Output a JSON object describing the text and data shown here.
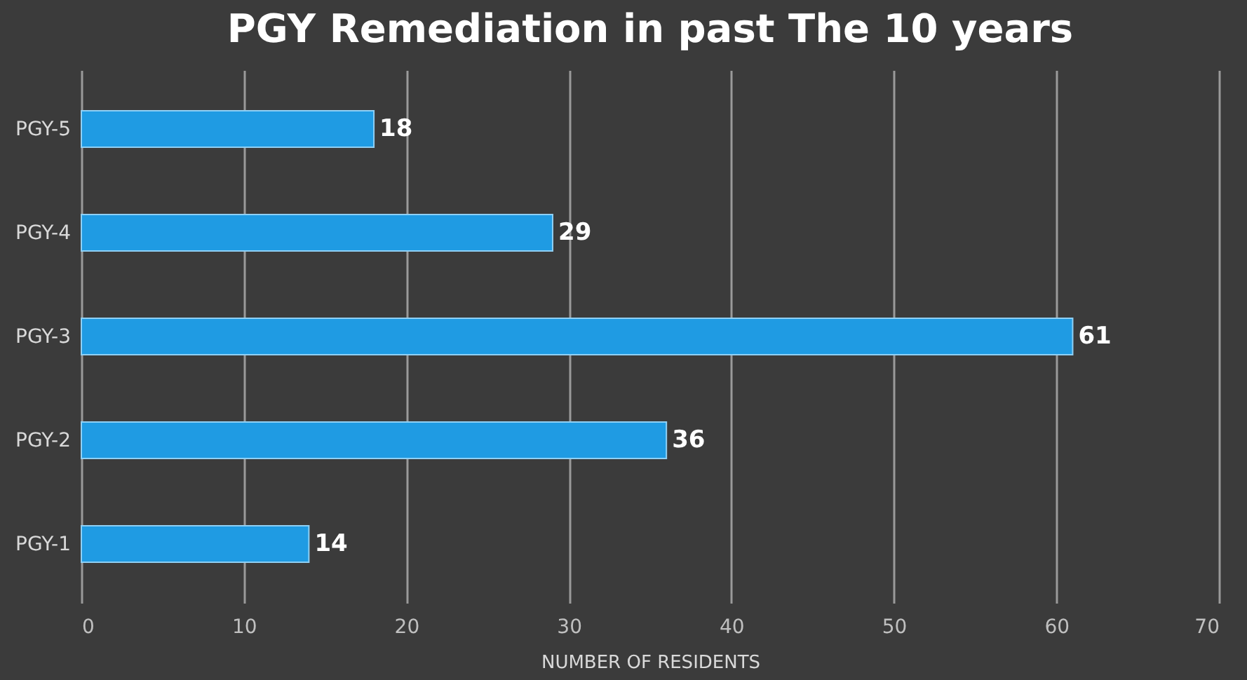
{
  "chart_data": {
    "type": "bar",
    "orientation": "horizontal",
    "title": "PGY Remediation in past The 10 years",
    "xlabel": "NUMBER OF RESIDENTS",
    "categories": [
      "PGY-5",
      "PGY-4",
      "PGY-3",
      "PGY-2",
      "PGY-1"
    ],
    "values": [
      18,
      29,
      61,
      36,
      14
    ],
    "color": "#1f9be3",
    "xlim": [
      0,
      70
    ],
    "xticks": [
      0,
      10,
      20,
      30,
      40,
      50,
      60,
      70
    ],
    "grid": "x",
    "data_labels": true
  }
}
